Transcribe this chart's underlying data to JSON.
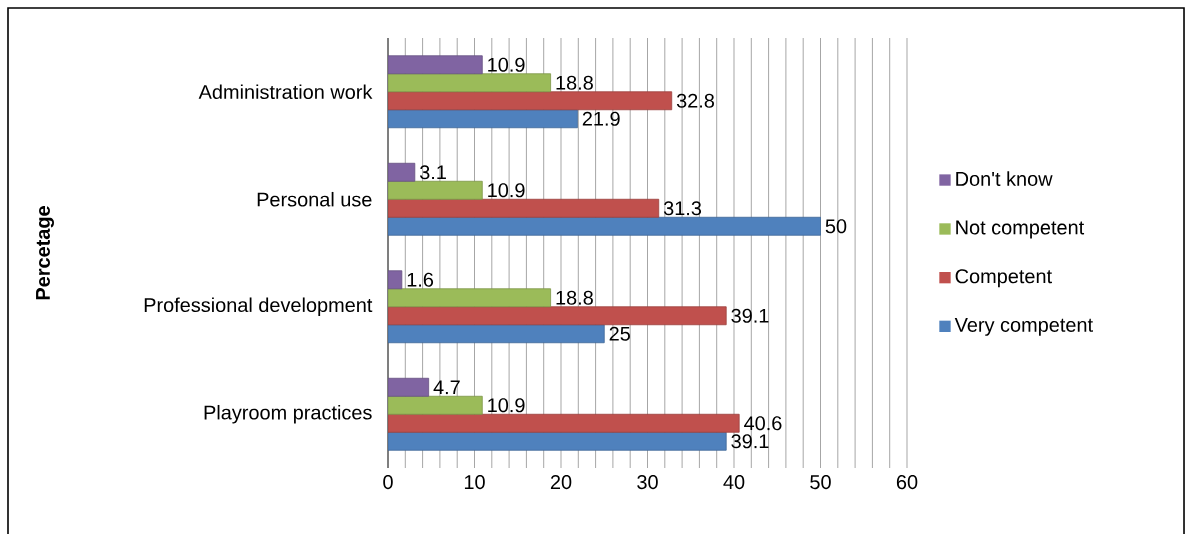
{
  "chart_data": {
    "type": "bar",
    "orientation": "horizontal",
    "ylabel": "Percetage",
    "categories": [
      "Administration work",
      "Personal use",
      "Professional development",
      "Playroom practices"
    ],
    "series": [
      {
        "name": "Very competent",
        "color": "#4f81bd",
        "values": [
          21.9,
          50,
          25,
          39.1
        ]
      },
      {
        "name": "Competent",
        "color": "#c0504d",
        "values": [
          32.8,
          31.3,
          39.1,
          40.6
        ]
      },
      {
        "name": "Not competent",
        "color": "#9bbb59",
        "values": [
          18.8,
          10.9,
          18.8,
          10.9
        ]
      },
      {
        "name": "Don't know",
        "color": "#8064a2",
        "values": [
          10.9,
          3.1,
          1.6,
          4.7
        ]
      }
    ],
    "xlim": [
      0,
      60
    ],
    "xticks": [
      0,
      10,
      20,
      30,
      40,
      50,
      60
    ],
    "grid": "x",
    "legend": "right",
    "data_labels": true
  }
}
